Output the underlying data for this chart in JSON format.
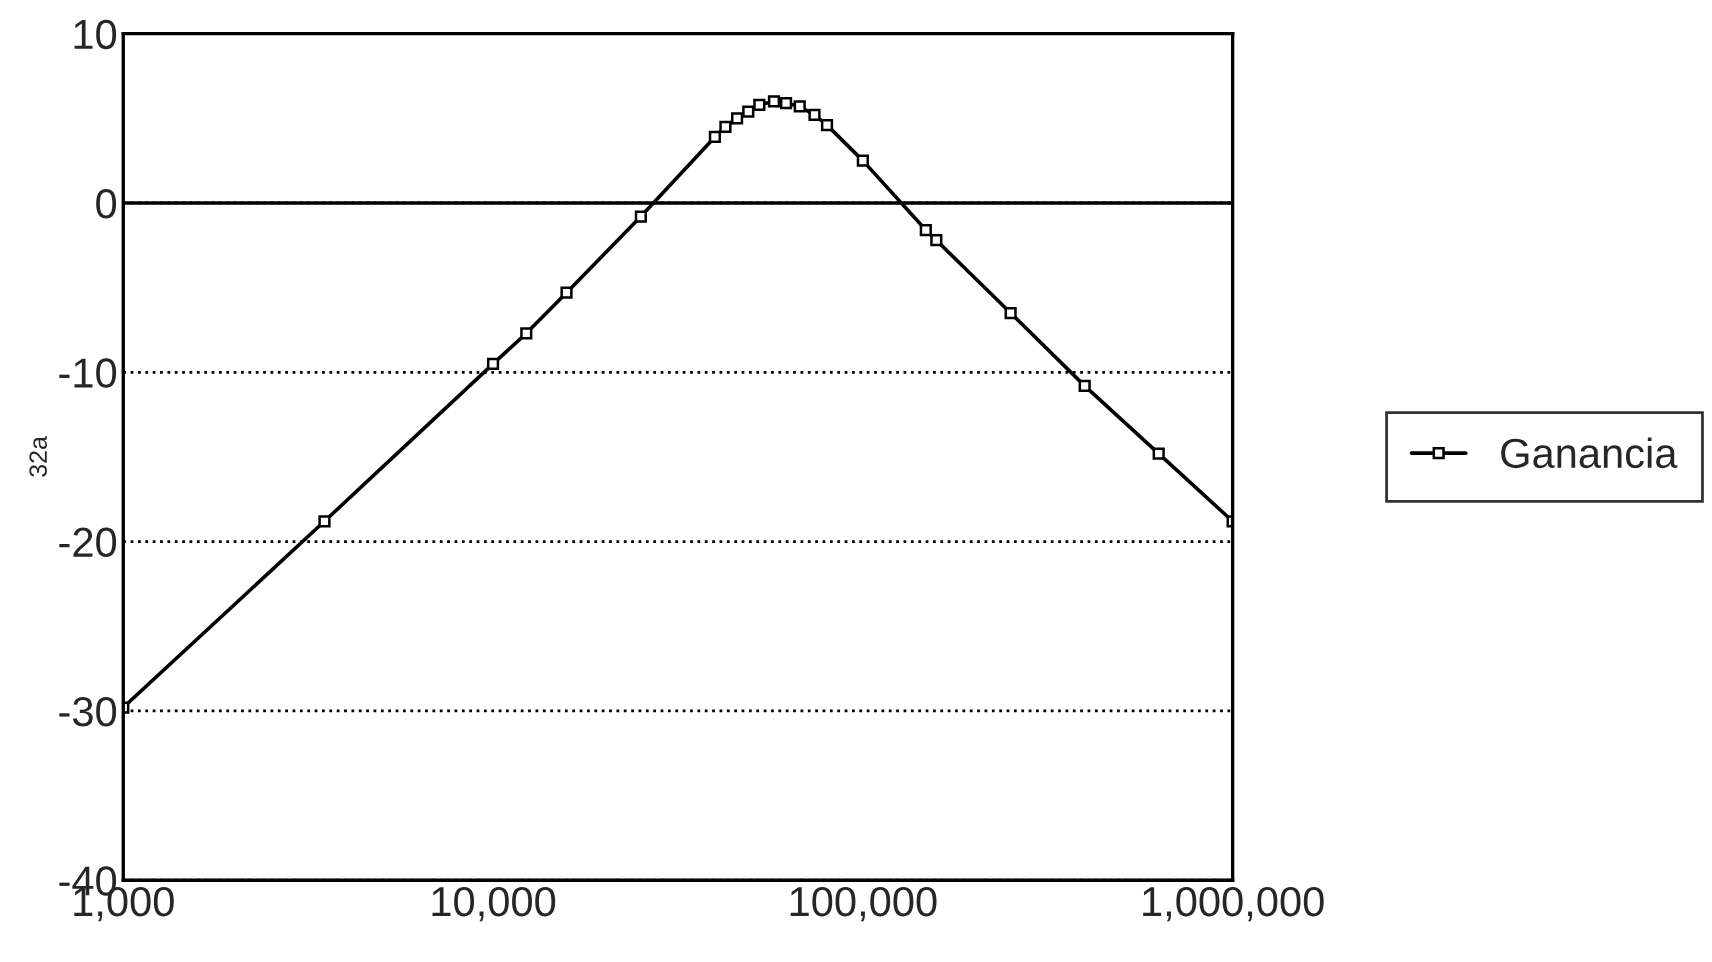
{
  "chart_data": {
    "type": "line",
    "ylabel": "32a",
    "log": "x",
    "xlim": [
      1000,
      1000000
    ],
    "xticks": [
      {
        "value": 1000,
        "label": "1,000"
      },
      {
        "value": 10000,
        "label": "10,000"
      },
      {
        "value": 100000,
        "label": "100,000"
      },
      {
        "value": 1000000,
        "label": "1,000,000"
      }
    ],
    "ylim": [
      -40,
      10
    ],
    "yticks": [
      -40,
      -30,
      -20,
      -10,
      0,
      10
    ],
    "grid": "y",
    "legend": "right",
    "marker": "square",
    "line_style": "solid",
    "ref_lines": [
      {
        "axis": "y",
        "value": 0,
        "color": "#000000",
        "line_style": "solid"
      }
    ],
    "series": [
      {
        "name": "Ganancia",
        "color": "#000000",
        "x": [
          1000,
          3500,
          10000,
          12300,
          15800,
          25100,
          39800,
          42500,
          45700,
          49000,
          52500,
          57500,
          62000,
          67500,
          74000,
          80000,
          100000,
          148000,
          158000,
          251000,
          398000,
          631000,
          1000000
        ],
        "values": [
          -29.8,
          -18.8,
          -9.5,
          -7.7,
          -5.3,
          -0.8,
          3.9,
          4.5,
          5.0,
          5.4,
          5.8,
          6.0,
          5.9,
          5.7,
          5.2,
          4.6,
          2.5,
          -1.6,
          -2.2,
          -6.5,
          -10.8,
          -14.8,
          -18.8
        ]
      }
    ]
  }
}
